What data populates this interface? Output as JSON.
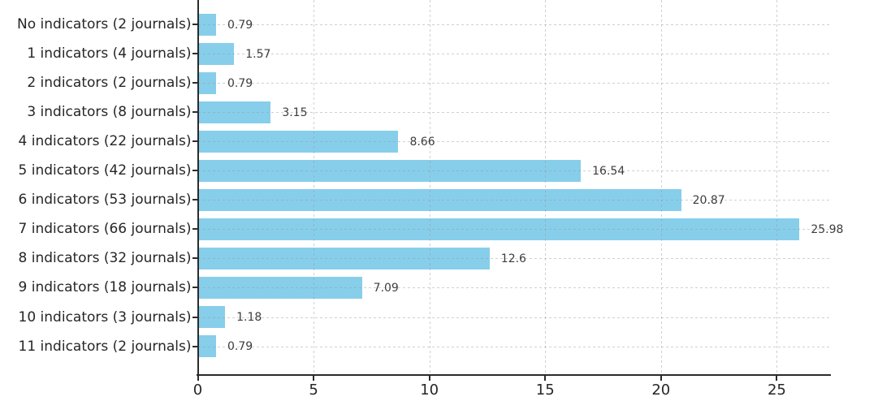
{
  "chart_data": {
    "type": "bar",
    "orientation": "horizontal",
    "title": "",
    "xlabel": "",
    "ylabel": "",
    "categories": [
      "No indicators (2 journals)",
      "1 indicators (4 journals)",
      "2 indicators (2 journals)",
      "3 indicators (8 journals)",
      "4 indicators (22 journals)",
      "5 indicators (42 journals)",
      "6 indicators (53 journals)",
      "7 indicators (66 journals)",
      "8 indicators (32 journals)",
      "9 indicators (18 journals)",
      "10 indicators (3 journals)",
      "11 indicators (2 journals)"
    ],
    "values": [
      0.79,
      1.57,
      0.79,
      3.15,
      8.66,
      16.54,
      20.87,
      25.98,
      12.6,
      7.09,
      1.18,
      0.79
    ],
    "value_labels": [
      "0.79",
      "1.57",
      "0.79",
      "3.15",
      "8.66",
      "16.54",
      "20.87",
      "25.98",
      "12.6",
      "7.09",
      "1.18",
      "0.79"
    ],
    "xticks": [
      "0",
      "5",
      "10",
      "15",
      "20",
      "25"
    ],
    "xtick_values": [
      0,
      5,
      10,
      15,
      20,
      25
    ],
    "xlim": [
      0,
      27.3
    ],
    "grid": "dashed",
    "legend_position": "none",
    "colors": {
      "bar": "#87CEEB",
      "axis": "#2b2b2b",
      "category_text": "#262626",
      "value_text": "#3d3d3d",
      "background": "#ffffff"
    }
  }
}
